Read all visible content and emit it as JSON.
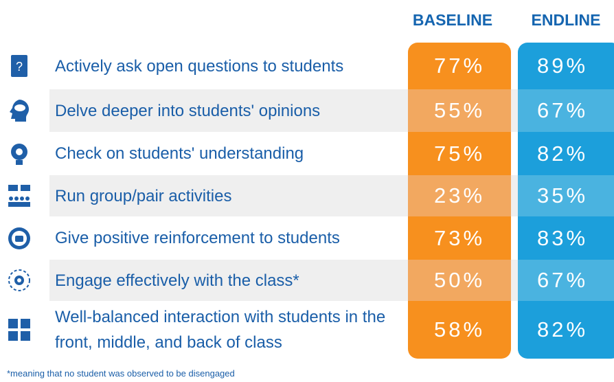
{
  "header": {
    "baseline": "BASELINE",
    "endline": "ENDLINE"
  },
  "rows": [
    {
      "label": "Actively ask open questions to students",
      "baseline": "77%",
      "endline": "89%"
    },
    {
      "label": "Delve deeper into students' opinions",
      "baseline": "55%",
      "endline": "67%"
    },
    {
      "label": "Check on students' understanding",
      "baseline": "75%",
      "endline": "82%"
    },
    {
      "label": "Run group/pair activities",
      "baseline": "23%",
      "endline": "35%"
    },
    {
      "label": "Give positive reinforcement to students",
      "baseline": "73%",
      "endline": "83%"
    },
    {
      "label": "Engage effectively with the class*",
      "baseline": "50%",
      "endline": "67%"
    },
    {
      "label": "Well-balanced interaction with students in the front, middle, and back of class",
      "baseline": "58%",
      "endline": "82%"
    }
  ],
  "footnote": "*meaning that no student was observed to be disengaged"
}
